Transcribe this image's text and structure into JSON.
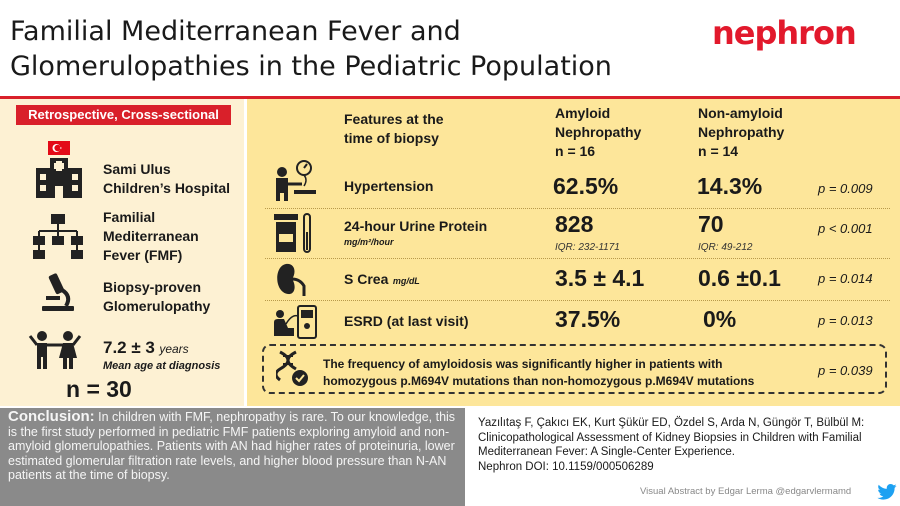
{
  "title_line1": "Familial Mediterranean Fever and",
  "title_line2": "Glomerulopathies in the Pediatric Population",
  "logo": "nephron",
  "left": {
    "badge": "Retrospective, Cross-sectional",
    "hospital_line1": "Sami Ulus",
    "hospital_line2": "Children’s Hospital",
    "fmf_line1": "Familial",
    "fmf_line2": "Mediterranean",
    "fmf_line3": "Fever (FMF)",
    "biopsy_line1": "Biopsy-proven",
    "biopsy_line2": "Glomerulopathy",
    "age_value": "7.2 ± 3",
    "age_unit": "years",
    "age_label": "Mean age at diagnosis",
    "n": "n = 30"
  },
  "table": {
    "features_line1": "Features at the",
    "features_line2": "time of biopsy",
    "col1_line1": "Amyloid",
    "col1_line2": "Nephropathy",
    "col1_line3": "n = 16",
    "col2_line1": "Non-amyloid",
    "col2_line2": "Nephropathy",
    "col2_line3": "n = 14",
    "rows": [
      {
        "label": "Hypertension",
        "unit": "",
        "amyloid": "62.5%",
        "amyloid_iqr": "",
        "non_amyloid": "14.3%",
        "non_amyloid_iqr": "",
        "p": "p = 0.009"
      },
      {
        "label": "24-hour Urine Protein",
        "unit": "mg/m²/hour",
        "amyloid": "828",
        "amyloid_iqr": "IQR: 232-1171",
        "non_amyloid": "70",
        "non_amyloid_iqr": "IQR: 49-212",
        "p": "p < 0.001"
      },
      {
        "label": "S Crea",
        "unit": "mg/dL",
        "amyloid": "3.5 ± 4.1",
        "amyloid_iqr": "",
        "non_amyloid": "0.6 ±0.1",
        "non_amyloid_iqr": "",
        "p": "p = 0.014"
      },
      {
        "label": "ESRD (at last visit)",
        "unit": "",
        "amyloid": "37.5%",
        "amyloid_iqr": "",
        "non_amyloid": "0%",
        "non_amyloid_iqr": "",
        "p": "p = 0.013"
      }
    ],
    "callout_line1": "The frequency of amyloidosis was significantly higher in patients with",
    "callout_line2": "homozygous p.M694V mutations than non-homozygous  p.M694V mutations",
    "callout_p": "p = 0.039"
  },
  "conclusion": {
    "heading": "Conclusion:",
    "text": "In children with FMF, nephropathy is rare. To our knowledge, this is the first study performed in pediatric FMF patients exploring amyloid and non-amyloid glomerulopathies. Patients with AN had higher rates of proteinuria, lower estimated glomerular filtration rate levels, and higher blood pressure than N-AN patients at the time of biopsy."
  },
  "citation": {
    "authors": "Yazılıtaş F, Çakıcı EK, Kurt Şükür ED, Özdel S, Arda N, Güngör T, Bülbül M:",
    "title": "Clinicopathological Assessment of Kidney Biopsies in Children with Familial Mediterranean Fever: A Single-Center Experience.",
    "doi": "Nephron DOI: 10.1159/000506289"
  },
  "credit": "Visual Abstract by Edgar Lerma @edgarvlermamd",
  "colors": {
    "accent": "#d9202a",
    "left_bg": "#fdf1d3",
    "right_bg": "#fde69a",
    "conclusion_bg": "#8a8a8a"
  },
  "icons": [
    "turkey-flag-icon",
    "hospital-icon",
    "hierarchy-icon",
    "microscope-icon",
    "children-icon",
    "blood-pressure-icon",
    "urine-cup-icon",
    "kidney-icon",
    "dialysis-icon",
    "dna-icon",
    "twitter-icon"
  ]
}
